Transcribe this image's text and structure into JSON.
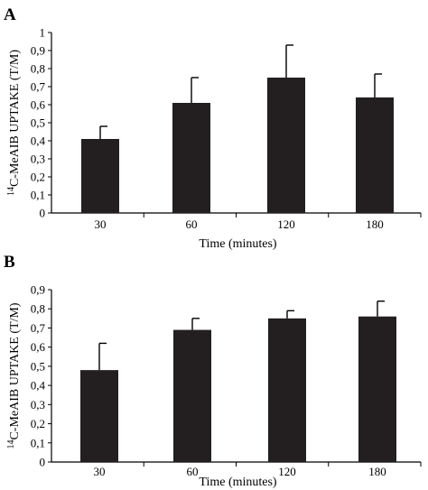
{
  "chart_data": [
    {
      "type": "bar",
      "panel_label": "A",
      "categories": [
        "30",
        "60",
        "120",
        "180"
      ],
      "values": [
        0.41,
        0.61,
        0.75,
        0.64
      ],
      "errors": [
        0.07,
        0.14,
        0.18,
        0.13
      ],
      "ylim": [
        0,
        1
      ],
      "yticks": [
        "0",
        "0,1",
        "0,2",
        "0,3",
        "0,4",
        "0,5",
        "0,6",
        "0,7",
        "0,8",
        "0,9",
        "1"
      ],
      "ylabel_sup": "14",
      "ylabel": "C-MeAIB UPTAKE (T/M)",
      "xlabel": "Time (minutes)",
      "bar_color": "#231f20",
      "grid": false
    },
    {
      "type": "bar",
      "panel_label": "B",
      "categories": [
        "30",
        "60",
        "120",
        "180"
      ],
      "values": [
        0.48,
        0.69,
        0.75,
        0.76
      ],
      "errors": [
        0.14,
        0.06,
        0.04,
        0.08
      ],
      "ylim": [
        0,
        0.9
      ],
      "yticks": [
        "0",
        "0,1",
        "0,2",
        "0,3",
        "0,4",
        "0,5",
        "0,6",
        "0,7",
        "0,8",
        "0,9"
      ],
      "ylabel_sup": "14",
      "ylabel": "C-MeAIB UPTAKE (T/M)",
      "xlabel": "Time (minutes)",
      "bar_color": "#231f20",
      "grid": false
    }
  ]
}
